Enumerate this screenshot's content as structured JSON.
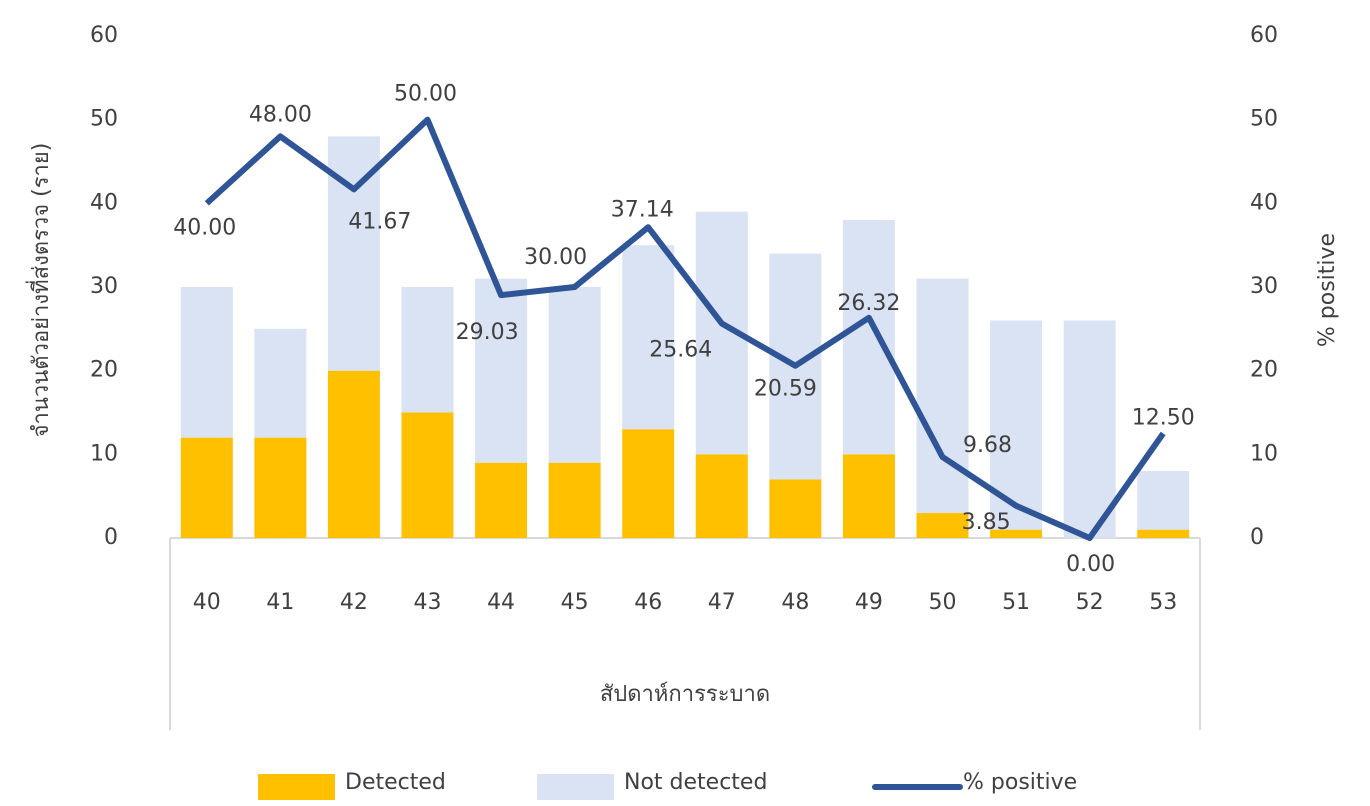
{
  "chart_data": {
    "type": "bar-line",
    "y_label": "จำนวนตัวอย่างที่ส่งตรวจ (ราย)",
    "y2_label": "% positive",
    "x_label": "สัปดาห์การระบาด",
    "categories": [
      "40",
      "41",
      "42",
      "43",
      "44",
      "45",
      "46",
      "47",
      "48",
      "49",
      "50",
      "51",
      "52",
      "53"
    ],
    "series": [
      {
        "name": "Detected",
        "type": "bar",
        "stacked": true,
        "color": "#ffc000",
        "values": [
          12,
          12,
          20,
          15,
          9,
          9,
          13,
          10,
          7,
          10,
          3,
          1,
          0,
          1
        ]
      },
      {
        "name": "Not detected",
        "type": "bar",
        "stacked": true,
        "color": "#dae3f3",
        "values": [
          18,
          13,
          28,
          15,
          22,
          21,
          22,
          29,
          27,
          28,
          28,
          25,
          26,
          7
        ]
      },
      {
        "name": "% positive",
        "type": "line",
        "axis": "y2",
        "color": "#2f5597",
        "values": [
          40,
          48,
          41.67,
          50,
          29.03,
          30,
          37.14,
          25.64,
          20.59,
          26.32,
          9.68,
          3.85,
          0,
          12.5
        ],
        "value_labels": [
          "40.00",
          "48.00",
          "41.67",
          "50.00",
          "29.03",
          "30.00",
          "37.14",
          "25.64",
          "20.59",
          "26.32",
          "9.68",
          "3.85",
          "0.00",
          "12.50"
        ]
      }
    ],
    "ylim": [
      0,
      60
    ],
    "yticks": [
      0,
      10,
      20,
      30,
      40,
      50,
      60
    ],
    "y2lim": [
      0,
      60
    ],
    "y2ticks": [
      0,
      10,
      20,
      30,
      40,
      50,
      60
    ],
    "legend": "bottom"
  }
}
